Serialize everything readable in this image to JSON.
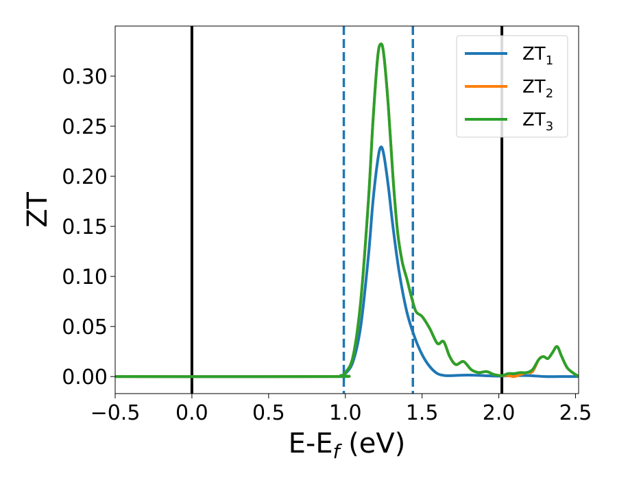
{
  "chart_data": {
    "type": "line",
    "xlabel_main": "E-E",
    "xlabel_sub": "f",
    "xlabel_unit": " (eV)",
    "ylabel": "ZT",
    "xlim": [
      -0.5,
      2.52
    ],
    "ylim": [
      -0.017,
      0.35
    ],
    "xticks": [
      -0.5,
      0.0,
      0.5,
      1.0,
      1.5,
      2.0,
      2.5
    ],
    "xtick_labels": [
      "−0.5",
      "0.0",
      "0.5",
      "1.0",
      "1.5",
      "2.0",
      "2.5"
    ],
    "yticks": [
      0.0,
      0.05,
      0.1,
      0.15,
      0.2,
      0.25,
      0.3
    ],
    "ytick_labels": [
      "0.00",
      "0.05",
      "0.10",
      "0.15",
      "0.20",
      "0.25",
      "0.30"
    ],
    "vlines": [
      {
        "x": 0.0,
        "color": "#000000",
        "style": "solid"
      },
      {
        "x": 2.02,
        "color": "#000000",
        "style": "solid"
      },
      {
        "x": 0.99,
        "color": "#1f77b4",
        "style": "dashed"
      },
      {
        "x": 1.44,
        "color": "#1f77b4",
        "style": "dashed"
      }
    ],
    "legend_position": "top-right",
    "series": [
      {
        "base": "ZT",
        "sub": "1",
        "color": "#1f77b4",
        "x": [
          -0.5,
          0.9,
          0.97,
          1.0,
          1.05,
          1.1,
          1.15,
          1.18,
          1.21,
          1.23,
          1.25,
          1.28,
          1.31,
          1.35,
          1.4,
          1.45,
          1.5,
          1.55,
          1.6,
          1.65,
          1.7,
          1.8,
          1.9,
          2.0,
          2.1,
          2.2,
          2.3,
          2.4,
          2.52
        ],
        "y": [
          0.0,
          0.0,
          0.001,
          0.003,
          0.015,
          0.05,
          0.12,
          0.175,
          0.215,
          0.229,
          0.222,
          0.19,
          0.15,
          0.105,
          0.065,
          0.04,
          0.022,
          0.01,
          0.003,
          0.001,
          0.001,
          0.0015,
          0.001,
          0.0005,
          0.001,
          0.001,
          0.0,
          0.0,
          0.0
        ]
      },
      {
        "base": "ZT",
        "sub": "2",
        "color": "#ff7f0e",
        "x": [
          -0.5,
          0.9,
          0.97,
          1.0,
          1.05,
          1.1,
          1.15,
          1.18,
          1.21,
          1.23,
          1.25,
          1.28,
          1.31,
          1.34,
          1.37,
          1.4,
          1.43,
          1.46,
          1.5,
          1.55,
          1.6,
          1.64,
          1.68,
          1.72,
          1.77,
          1.82,
          1.87,
          1.92,
          1.97,
          2.02,
          2.06,
          2.1,
          2.14,
          2.18,
          2.22,
          2.26,
          2.29,
          2.32,
          2.35,
          2.38,
          2.41,
          2.45,
          2.52
        ],
        "y": [
          0.0,
          0.0,
          0.001,
          0.004,
          0.02,
          0.075,
          0.175,
          0.255,
          0.318,
          0.332,
          0.322,
          0.27,
          0.2,
          0.145,
          0.115,
          0.098,
          0.08,
          0.065,
          0.06,
          0.048,
          0.033,
          0.035,
          0.02,
          0.012,
          0.015,
          0.007,
          0.004,
          0.005,
          0.002,
          0.001,
          0.001,
          0.0,
          0.002,
          0.004,
          0.005,
          0.017,
          0.02,
          0.018,
          0.024,
          0.03,
          0.02,
          0.008,
          0.0
        ]
      },
      {
        "base": "ZT",
        "sub": "3",
        "color": "#2ca02c",
        "x": [
          -0.5,
          0.9,
          0.97,
          1.0,
          1.05,
          1.1,
          1.15,
          1.18,
          1.21,
          1.23,
          1.25,
          1.28,
          1.31,
          1.34,
          1.37,
          1.4,
          1.43,
          1.46,
          1.5,
          1.55,
          1.6,
          1.64,
          1.68,
          1.72,
          1.77,
          1.82,
          1.87,
          1.92,
          1.97,
          2.02,
          2.06,
          2.1,
          2.14,
          2.18,
          2.22,
          2.26,
          2.29,
          2.32,
          2.35,
          2.38,
          2.41,
          2.45,
          2.52
        ],
        "y": [
          0.0,
          0.0,
          0.001,
          0.004,
          0.02,
          0.075,
          0.175,
          0.255,
          0.318,
          0.332,
          0.322,
          0.27,
          0.2,
          0.145,
          0.115,
          0.098,
          0.08,
          0.065,
          0.06,
          0.048,
          0.033,
          0.035,
          0.02,
          0.012,
          0.015,
          0.007,
          0.004,
          0.005,
          0.002,
          0.001,
          0.003,
          0.003,
          0.004,
          0.004,
          0.007,
          0.017,
          0.02,
          0.018,
          0.024,
          0.03,
          0.02,
          0.008,
          0.0
        ]
      }
    ]
  }
}
